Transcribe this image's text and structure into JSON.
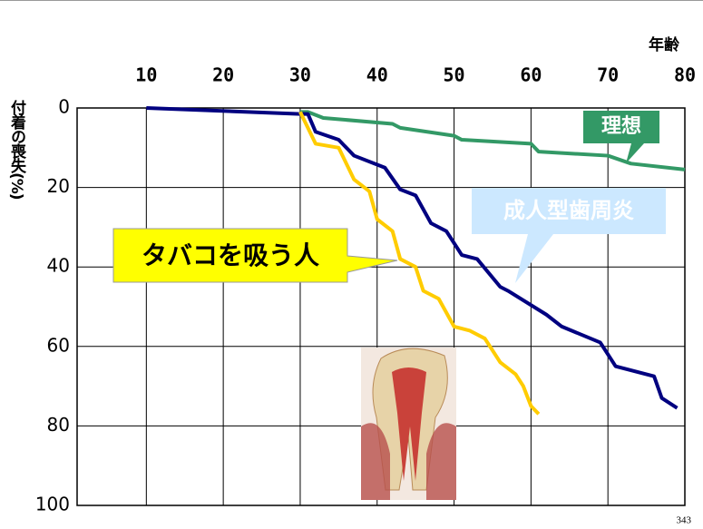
{
  "chart_data": {
    "type": "line",
    "x_label": "年齢",
    "y_label": "付着の喪失(%)",
    "xlim": [
      1,
      80
    ],
    "xticks": [
      10,
      20,
      30,
      40,
      50,
      60,
      70,
      80
    ],
    "ylim": [
      0,
      100
    ],
    "yticks": [
      0,
      20,
      40,
      60,
      80,
      100
    ],
    "y_inverted": true,
    "grid": true,
    "x_axis_position": "top",
    "series": [
      {
        "name": "理想",
        "color": "#339966",
        "x": [
          30,
          31,
          33,
          42,
          43,
          50,
          51,
          60,
          61,
          70,
          73,
          80
        ],
        "values": [
          1,
          1,
          2.5,
          4,
          5,
          7,
          8,
          9,
          11,
          12,
          14,
          15.5
        ]
      },
      {
        "name": "成人型歯周炎",
        "color": "#000080",
        "x": [
          10,
          30,
          31,
          32,
          35,
          37,
          41,
          43,
          45,
          47,
          49,
          51,
          53,
          56,
          57,
          62,
          64,
          69,
          71,
          76,
          77,
          79
        ],
        "values": [
          0,
          1.5,
          1.5,
          6,
          8,
          12,
          15,
          20.5,
          22,
          29,
          31,
          37,
          38,
          45,
          46,
          52,
          55,
          59,
          65,
          67.5,
          73,
          75.5
        ]
      },
      {
        "name": "タバコを吸う人",
        "color": "#ffcc00",
        "x": [
          30,
          32,
          35,
          37,
          39,
          40,
          42,
          43,
          45,
          46,
          48,
          50,
          52,
          54,
          56,
          58,
          59,
          60,
          61
        ],
        "values": [
          1,
          9,
          10,
          18,
          21,
          28,
          31,
          38,
          40,
          46,
          48,
          55,
          56,
          58,
          64,
          67,
          70,
          75,
          77
        ]
      }
    ],
    "page_number": "343"
  }
}
